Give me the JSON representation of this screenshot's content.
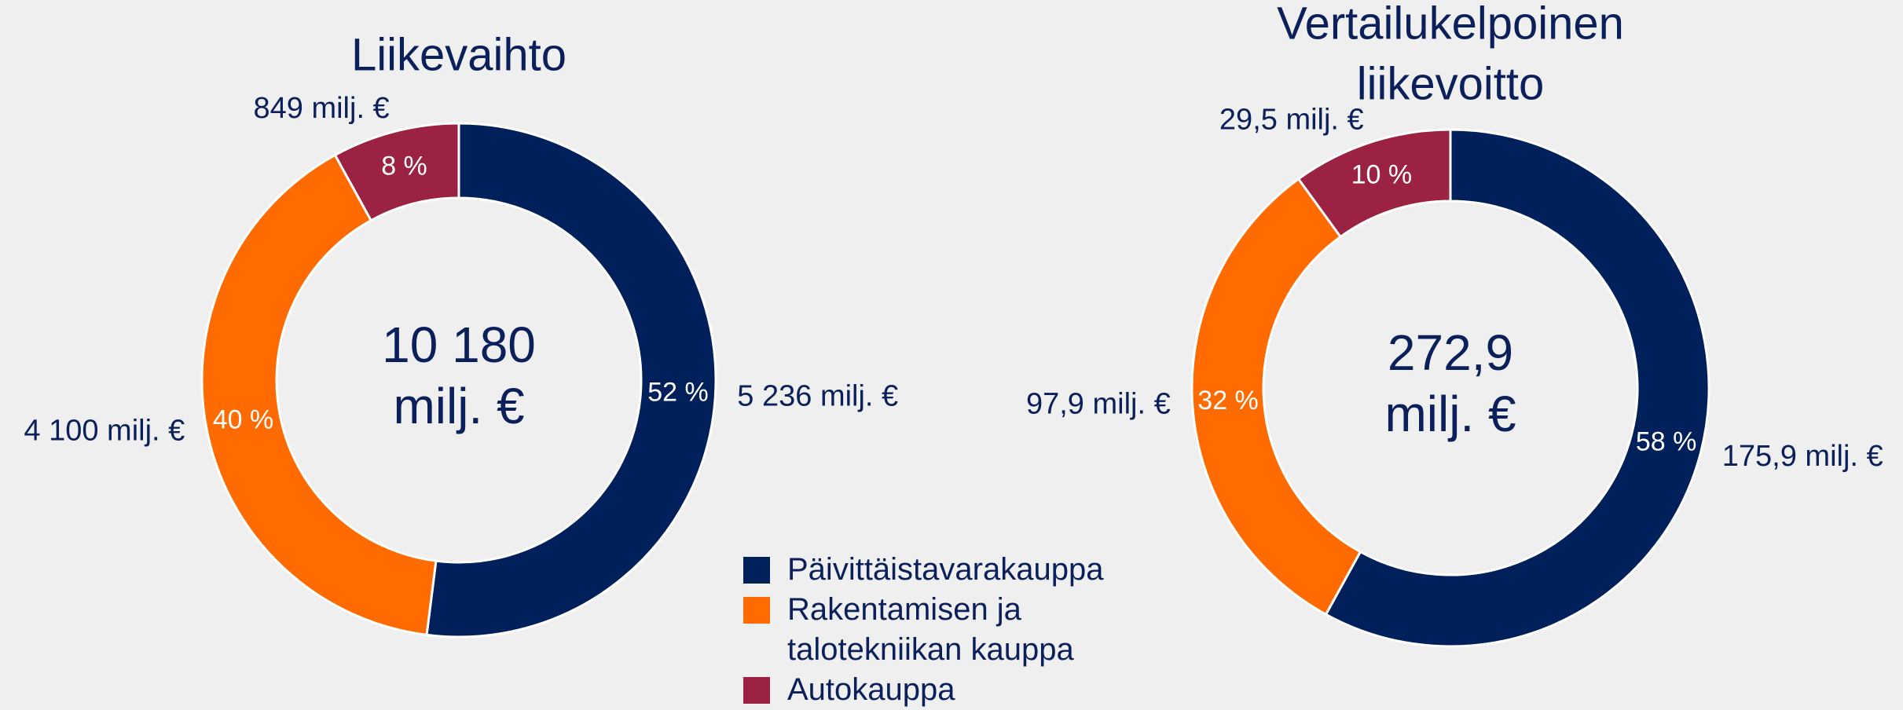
{
  "chart_data": [
    {
      "type": "donut",
      "title": [
        "Liikevaihto"
      ],
      "categories": [
        "Päivittäistavarakauppa",
        "Rakentamisen ja talotekniikan kauppa",
        "Autokauppa"
      ],
      "colors": [
        "#00205b",
        "#ff6b00",
        "#9b2242"
      ],
      "values": [
        52,
        40,
        8
      ],
      "value_labels": [
        "52 %",
        "40 %",
        "8 %"
      ],
      "amounts": [
        5236,
        4100,
        849
      ],
      "amount_labels": [
        "5 236 milj. €",
        "4 100 milj. €",
        "849 milj. €"
      ],
      "center_label": [
        "10 180",
        "milj. €"
      ],
      "legend": true
    },
    {
      "type": "donut",
      "title": [
        "Vertailukelpoinen",
        "liikevoitto"
      ],
      "categories": [
        "Päivittäistavarakauppa",
        "Rakentamisen ja talotekniikan kauppa",
        "Autokauppa"
      ],
      "colors": [
        "#00205b",
        "#ff6b00",
        "#9b2242"
      ],
      "values": [
        58,
        32,
        10
      ],
      "value_labels": [
        "58 %",
        "32 %",
        "10 %"
      ],
      "amounts": [
        175.9,
        97.9,
        29.5
      ],
      "amount_labels": [
        "175,9 milj. €",
        "97,9 milj. €",
        "29,5 milj. €"
      ],
      "center_label": [
        "272,9",
        "milj. €"
      ],
      "legend": false
    }
  ]
}
